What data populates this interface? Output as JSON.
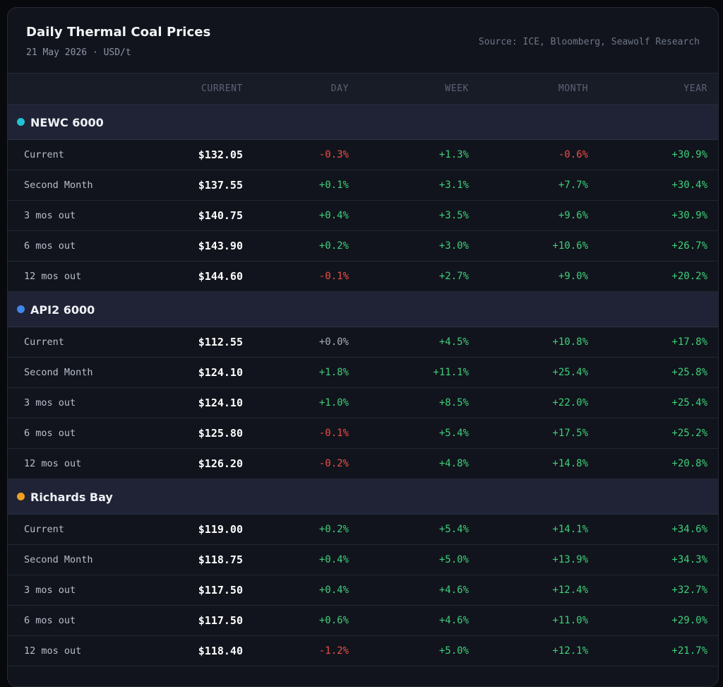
{
  "header": {
    "title": "Daily Thermal Coal Prices",
    "subtitle": "21 May 2026 · USD/t",
    "source": "Source: ICE, Bloomberg, Seawolf Research"
  },
  "columns": [
    "",
    "CURRENT",
    "DAY",
    "WEEK",
    "MONTH",
    "YEAR"
  ],
  "colors": {
    "positive": "#3ecf7a",
    "negative": "#ef4d47",
    "neutral": "#a6adbb"
  },
  "groups": [
    {
      "name": "NEWC 6000",
      "dot_color": "#22c3d3",
      "rows": [
        {
          "label": "Current",
          "price": "$132.05",
          "day": "-0.3%",
          "week": "+1.3%",
          "month": "-0.6%",
          "year": "+30.9%"
        },
        {
          "label": "Second Month",
          "price": "$137.55",
          "day": "+0.1%",
          "week": "+3.1%",
          "month": "+7.7%",
          "year": "+30.4%"
        },
        {
          "label": "3 mos out",
          "price": "$140.75",
          "day": "+0.4%",
          "week": "+3.5%",
          "month": "+9.6%",
          "year": "+30.9%"
        },
        {
          "label": "6 mos out",
          "price": "$143.90",
          "day": "+0.2%",
          "week": "+3.0%",
          "month": "+10.6%",
          "year": "+26.7%"
        },
        {
          "label": "12 mos out",
          "price": "$144.60",
          "day": "-0.1%",
          "week": "+2.7%",
          "month": "+9.0%",
          "year": "+20.2%"
        }
      ]
    },
    {
      "name": "API2 6000",
      "dot_color": "#3f86e8",
      "rows": [
        {
          "label": "Current",
          "price": "$112.55",
          "day": "+0.0%",
          "week": "+4.5%",
          "month": "+10.8%",
          "year": "+17.8%"
        },
        {
          "label": "Second Month",
          "price": "$124.10",
          "day": "+1.8%",
          "week": "+11.1%",
          "month": "+25.4%",
          "year": "+25.8%"
        },
        {
          "label": "3 mos out",
          "price": "$124.10",
          "day": "+1.0%",
          "week": "+8.5%",
          "month": "+22.0%",
          "year": "+25.4%"
        },
        {
          "label": "6 mos out",
          "price": "$125.80",
          "day": "-0.1%",
          "week": "+5.4%",
          "month": "+17.5%",
          "year": "+25.2%"
        },
        {
          "label": "12 mos out",
          "price": "$126.20",
          "day": "-0.2%",
          "week": "+4.8%",
          "month": "+14.8%",
          "year": "+20.8%"
        }
      ]
    },
    {
      "name": "Richards Bay",
      "dot_color": "#f0a020",
      "rows": [
        {
          "label": "Current",
          "price": "$119.00",
          "day": "+0.2%",
          "week": "+5.4%",
          "month": "+14.1%",
          "year": "+34.6%"
        },
        {
          "label": "Second Month",
          "price": "$118.75",
          "day": "+0.4%",
          "week": "+5.0%",
          "month": "+13.9%",
          "year": "+34.3%"
        },
        {
          "label": "3 mos out",
          "price": "$117.50",
          "day": "+0.4%",
          "week": "+4.6%",
          "month": "+12.4%",
          "year": "+32.7%"
        },
        {
          "label": "6 mos out",
          "price": "$117.50",
          "day": "+0.6%",
          "week": "+4.6%",
          "month": "+11.0%",
          "year": "+29.0%"
        },
        {
          "label": "12 mos out",
          "price": "$118.40",
          "day": "-1.2%",
          "week": "+5.0%",
          "month": "+12.1%",
          "year": "+21.7%"
        }
      ]
    }
  ]
}
